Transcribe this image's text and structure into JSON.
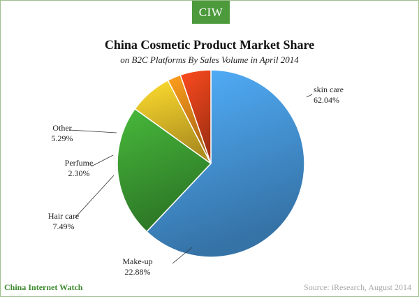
{
  "header": {
    "logo": "CIW"
  },
  "chart_data": {
    "type": "pie",
    "title": "China Cosmetic Product Market Share",
    "subtitle": "on B2C Platforms By Sales Volume in April 2014",
    "slices": [
      {
        "label": "skin care",
        "value": 62.04,
        "value_label": "62.04%",
        "color": "#4a9fe6"
      },
      {
        "label": "Make-up",
        "value": 22.88,
        "value_label": "22.88%",
        "color": "#3fa535"
      },
      {
        "label": "Hair care",
        "value": 7.49,
        "value_label": "7.49%",
        "color": "#f1c62a"
      },
      {
        "label": "Perfume",
        "value": 2.3,
        "value_label": "2.30%",
        "color": "#ee8e1a"
      },
      {
        "label": "Other",
        "value": 5.29,
        "value_label": "5.29%",
        "color": "#e2431b"
      }
    ],
    "start_angle_deg": 360,
    "direction": "clockwise",
    "legend": "none"
  },
  "footer": {
    "brand": "China Internet Watch",
    "source": "Source: iResearch, August 2014"
  }
}
